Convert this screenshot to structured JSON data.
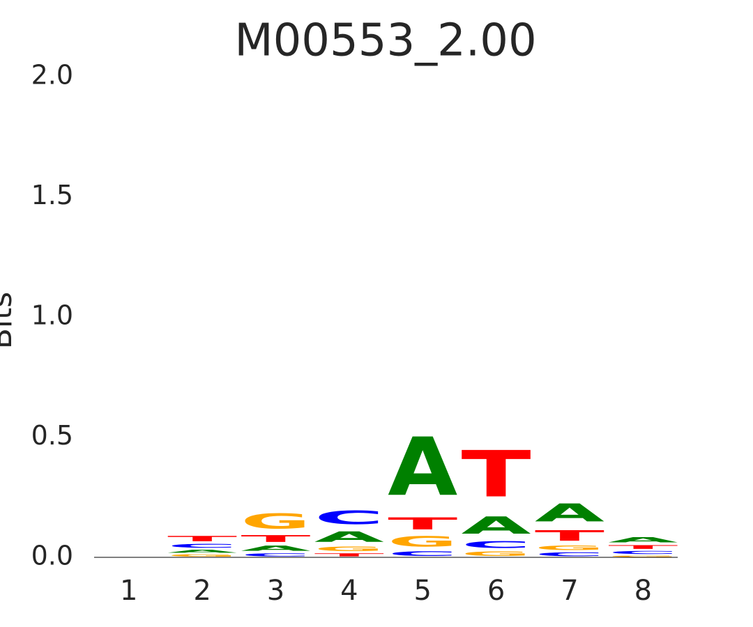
{
  "chart_data": {
    "type": "logo",
    "title": "M00553_2.00",
    "ylabel": "Bits",
    "x": [
      1,
      2,
      3,
      4,
      5,
      6,
      7,
      8
    ],
    "xlim": [
      0.5,
      8.5
    ],
    "xticks": [
      1,
      2,
      3,
      4,
      5,
      6,
      7,
      8
    ],
    "ylim": [
      0,
      2
    ],
    "yticks": [
      {
        "value": 0,
        "label": "0.0"
      },
      {
        "value": 0.5,
        "label": "0.5"
      },
      {
        "value": 1,
        "label": "1.0"
      },
      {
        "value": 1.5,
        "label": "1.5"
      },
      {
        "value": 2,
        "label": "2.0"
      }
    ],
    "series": [
      {
        "name": "A",
        "color": "#008000",
        "values": [
          0,
          0.02,
          0.035,
          0.07,
          0.39,
          0.115,
          0.12,
          0.035
        ]
      },
      {
        "name": "C",
        "color": "#0000ff",
        "values": [
          0,
          0.025,
          0.02,
          0.09,
          0.03,
          0.045,
          0.025,
          0.02
        ]
      },
      {
        "name": "G",
        "color": "#ffa500",
        "values": [
          0,
          0.015,
          0.1,
          0.03,
          0.07,
          0.03,
          0.03,
          0.01
        ]
      },
      {
        "name": "T",
        "color": "#ff0000",
        "values": [
          0,
          0.035,
          0.045,
          0.02,
          0.08,
          0.31,
          0.07,
          0.025
        ]
      }
    ]
  }
}
